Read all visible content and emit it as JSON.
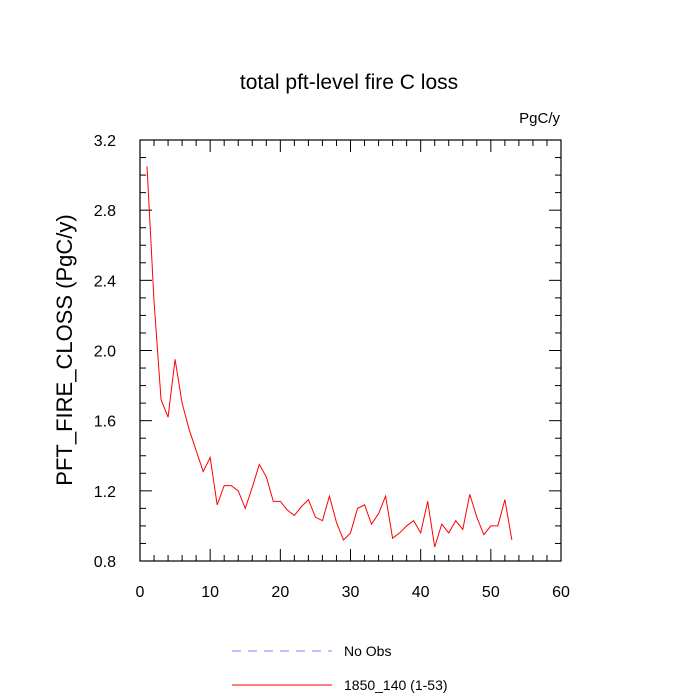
{
  "chart_data": {
    "type": "line",
    "title": "total pft-level fire C loss",
    "units_label": "PgC/y",
    "ylabel": "PFT_FIRE_CLOSS  (PgC/y)",
    "xlabel": "",
    "xlim": [
      0,
      60
    ],
    "ylim": [
      0.8,
      3.2
    ],
    "xticks": [
      "0",
      "10",
      "20",
      "30",
      "40",
      "50",
      "60"
    ],
    "yticks": [
      "0.8",
      "1.2",
      "1.6",
      "2.0",
      "2.4",
      "2.8",
      "3.2"
    ],
    "grid": false,
    "legend_position": "bottom-center",
    "series": [
      {
        "name": "No Obs",
        "color": "#8080ff",
        "dash": "dashed",
        "x": [],
        "y": []
      },
      {
        "name": "1850_140 (1-53)",
        "color": "#ff0000",
        "dash": "solid",
        "x": [
          1,
          2,
          3,
          4,
          5,
          6,
          7,
          8,
          9,
          10,
          11,
          12,
          13,
          14,
          15,
          16,
          17,
          18,
          19,
          20,
          21,
          22,
          23,
          24,
          25,
          26,
          27,
          28,
          29,
          30,
          31,
          32,
          33,
          34,
          35,
          36,
          37,
          38,
          39,
          40,
          41,
          42,
          43,
          44,
          45,
          46,
          47,
          48,
          49,
          50,
          51,
          52,
          53
        ],
        "y": [
          3.05,
          2.28,
          1.72,
          1.62,
          1.95,
          1.7,
          1.55,
          1.43,
          1.31,
          1.39,
          1.12,
          1.23,
          1.23,
          1.2,
          1.1,
          1.22,
          1.35,
          1.28,
          1.14,
          1.14,
          1.09,
          1.06,
          1.11,
          1.15,
          1.05,
          1.03,
          1.17,
          1.02,
          0.92,
          0.96,
          1.1,
          1.12,
          1.01,
          1.07,
          1.17,
          0.93,
          0.96,
          1.0,
          1.03,
          0.96,
          1.14,
          0.88,
          1.01,
          0.96,
          1.03,
          0.98,
          1.18,
          1.05,
          0.95,
          1.0,
          1.0,
          1.15,
          0.92
        ]
      }
    ]
  }
}
